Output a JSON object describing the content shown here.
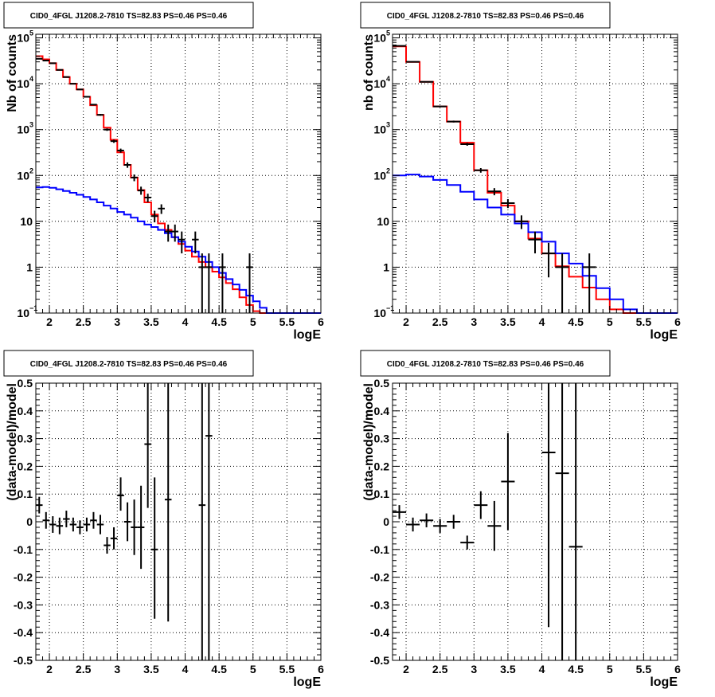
{
  "chart_data": [
    {
      "id": "top-left",
      "type": "histogram",
      "title": "CID0_4FGL J1208.2-7810 TS=82.83 PS=0.46 PS=0.46",
      "xlabel": "logE",
      "ylabel": "Nb of counts",
      "xlim": [
        1.8,
        6.0
      ],
      "ylim": [
        0.1,
        120000
      ],
      "log_y": true,
      "grid": true,
      "x_ticks": [
        "2",
        "2.5",
        "3",
        "3.5",
        "4",
        "4.5",
        "5",
        "5.5",
        "6"
      ],
      "y_ticks": [
        {
          "v": 0.1,
          "base": "10",
          "exp": "−1"
        },
        {
          "v": 1,
          "base": "1",
          "exp": ""
        },
        {
          "v": 10,
          "base": "10",
          "exp": ""
        },
        {
          "v": 100,
          "base": "10",
          "exp": "2"
        },
        {
          "v": 1000,
          "base": "10",
          "exp": "3"
        },
        {
          "v": 10000,
          "base": "10",
          "exp": "4"
        },
        {
          "v": 100000,
          "base": "10",
          "exp": "5"
        }
      ],
      "bin_edges": [
        1.8,
        1.9,
        2.0,
        2.1,
        2.2,
        2.3,
        2.4,
        2.5,
        2.6,
        2.7,
        2.8,
        2.9,
        3.0,
        3.1,
        3.2,
        3.3,
        3.4,
        3.5,
        3.6,
        3.7,
        3.8,
        3.9,
        4.0,
        4.1,
        4.2,
        4.3,
        4.4,
        4.5,
        4.6,
        4.7,
        4.8,
        4.9,
        5.0,
        5.1,
        5.2,
        5.3,
        5.4,
        5.5,
        5.6,
        5.7,
        5.8,
        5.9,
        6.0
      ],
      "series": [
        {
          "color": "#ff0000",
          "kind": "step",
          "values": [
            40000,
            34000,
            28000,
            20000,
            14000,
            10000,
            7500,
            5200,
            3400,
            2100,
            1100,
            600,
            320,
            170,
            90,
            48,
            26,
            14,
            9,
            6.5,
            4.5,
            3.2,
            2.3,
            1.7,
            1.3,
            1.0,
            0.8,
            0.6,
            0.45,
            0.33,
            0.22,
            0.15,
            0.11,
            0.1,
            0.1,
            0.1,
            0.1,
            0.1,
            0.1,
            0.1,
            0.1,
            0.1
          ]
        },
        {
          "color": "#0000ff",
          "kind": "step",
          "values": [
            55,
            56,
            54,
            50,
            46,
            42,
            38,
            34,
            30,
            26,
            22,
            19,
            16,
            14,
            12,
            10,
            8.5,
            7.5,
            6.5,
            5.5,
            4.5,
            3.6,
            2.8,
            2.2,
            1.7,
            1.3,
            1.0,
            0.75,
            0.55,
            0.42,
            0.32,
            0.24,
            0.18,
            0.13,
            0.1,
            0.1,
            0.1,
            0.1,
            0.1,
            0.1,
            0.1,
            0.1
          ]
        }
      ],
      "points": [
        {
          "x": 1.85,
          "y": 35000,
          "xerr": 0.05,
          "lo": 34500,
          "hi": 35500
        },
        {
          "x": 1.95,
          "y": 32000,
          "xerr": 0.05,
          "lo": 31500,
          "hi": 32500
        },
        {
          "x": 2.05,
          "y": 28000,
          "xerr": 0.05,
          "lo": 27500,
          "hi": 28500
        },
        {
          "x": 2.15,
          "y": 20000,
          "xerr": 0.05,
          "lo": 19600,
          "hi": 20400
        },
        {
          "x": 2.25,
          "y": 14000,
          "xerr": 0.05,
          "lo": 13700,
          "hi": 14300
        },
        {
          "x": 2.35,
          "y": 10000,
          "xerr": 0.05,
          "lo": 9800,
          "hi": 10200
        },
        {
          "x": 2.45,
          "y": 7500,
          "xerr": 0.05,
          "lo": 7300,
          "hi": 7700
        },
        {
          "x": 2.55,
          "y": 5200,
          "xerr": 0.05,
          "lo": 5050,
          "hi": 5350
        },
        {
          "x": 2.65,
          "y": 3500,
          "xerr": 0.05,
          "lo": 3380,
          "hi": 3620
        },
        {
          "x": 2.75,
          "y": 2100,
          "xerr": 0.05,
          "lo": 2010,
          "hi": 2190
        },
        {
          "x": 2.85,
          "y": 1000,
          "xerr": 0.05,
          "lo": 940,
          "hi": 1060
        },
        {
          "x": 2.95,
          "y": 560,
          "xerr": 0.05,
          "lo": 515,
          "hi": 605
        },
        {
          "x": 3.05,
          "y": 350,
          "xerr": 0.05,
          "lo": 315,
          "hi": 385
        },
        {
          "x": 3.15,
          "y": 170,
          "xerr": 0.05,
          "lo": 147,
          "hi": 193
        },
        {
          "x": 3.25,
          "y": 90,
          "xerr": 0.05,
          "lo": 75,
          "hi": 105
        },
        {
          "x": 3.35,
          "y": 47,
          "xerr": 0.05,
          "lo": 38,
          "hi": 57
        },
        {
          "x": 3.45,
          "y": 33,
          "xerr": 0.05,
          "lo": 26,
          "hi": 40
        },
        {
          "x": 3.55,
          "y": 13,
          "xerr": 0.05,
          "lo": 9.5,
          "hi": 17
        },
        {
          "x": 3.65,
          "y": 19,
          "xerr": 0.05,
          "lo": 14.5,
          "hi": 23.5
        },
        {
          "x": 3.75,
          "y": 6,
          "xerr": 0.05,
          "lo": 3.6,
          "hi": 8.5
        },
        {
          "x": 3.85,
          "y": 6,
          "xerr": 0.05,
          "lo": 3.6,
          "hi": 8.5
        },
        {
          "x": 3.95,
          "y": 4,
          "xerr": 0.05,
          "lo": 2.0,
          "hi": 6.0
        },
        {
          "x": 4.15,
          "y": 4,
          "xerr": 0.05,
          "lo": 2.0,
          "hi": 6.0
        },
        {
          "x": 4.25,
          "y": 1,
          "xerr": 0.05,
          "lo": 0.1,
          "hi": 2.0
        },
        {
          "x": 4.35,
          "y": 1,
          "xerr": 0.05,
          "lo": 0.1,
          "hi": 2.0
        },
        {
          "x": 4.55,
          "y": 1,
          "xerr": 0.05,
          "lo": 0.1,
          "hi": 2.0
        },
        {
          "x": 4.95,
          "y": 1,
          "xerr": 0.05,
          "lo": 0.1,
          "hi": 2.0
        }
      ]
    },
    {
      "id": "top-right",
      "type": "histogram",
      "title": "CID0_4FGL J1208.2-7810 TS=82.83 PS=0.46 PS=0.46",
      "xlabel": "logE",
      "ylabel": "nb of counts",
      "xlim": [
        1.8,
        6.0
      ],
      "ylim": [
        0.1,
        120000
      ],
      "log_y": true,
      "grid": true,
      "x_ticks": [
        "2",
        "2.5",
        "3",
        "3.5",
        "4",
        "4.5",
        "5",
        "5.5",
        "6"
      ],
      "y_ticks": [
        {
          "v": 0.1,
          "base": "10",
          "exp": "−1"
        },
        {
          "v": 1,
          "base": "1",
          "exp": ""
        },
        {
          "v": 10,
          "base": "10",
          "exp": ""
        },
        {
          "v": 100,
          "base": "10",
          "exp": "2"
        },
        {
          "v": 1000,
          "base": "10",
          "exp": "3"
        },
        {
          "v": 10000,
          "base": "10",
          "exp": "4"
        },
        {
          "v": 100000,
          "base": "10",
          "exp": "5"
        }
      ],
      "bin_edges": [
        1.8,
        2.0,
        2.2,
        2.4,
        2.6,
        2.8,
        3.0,
        3.2,
        3.4,
        3.6,
        3.8,
        4.0,
        4.2,
        4.4,
        4.6,
        4.8,
        5.0,
        5.2,
        5.4,
        5.6,
        5.8,
        6.0
      ],
      "series": [
        {
          "color": "#ff0000",
          "kind": "step",
          "values": [
            65000,
            30000,
            11000,
            3200,
            1500,
            520,
            130,
            42,
            22,
            10,
            4.2,
            2.0,
            1.05,
            0.62,
            0.36,
            0.2,
            0.12,
            0.1,
            0.1,
            0.1,
            0.1
          ]
        },
        {
          "color": "#0000ff",
          "kind": "step",
          "values": [
            100,
            105,
            95,
            80,
            62,
            44,
            30,
            20,
            14,
            9,
            5.8,
            3.6,
            2.0,
            1.2,
            0.65,
            0.35,
            0.2,
            0.12,
            0.1,
            0.1,
            0.1
          ]
        }
      ],
      "points": [
        {
          "x": 1.9,
          "y": 67000,
          "xerr": 0.1,
          "lo": 66500,
          "hi": 67500
        },
        {
          "x": 2.1,
          "y": 30000,
          "xerr": 0.1,
          "lo": 29700,
          "hi": 30300
        },
        {
          "x": 2.3,
          "y": 11000,
          "xerr": 0.1,
          "lo": 10800,
          "hi": 11200
        },
        {
          "x": 2.5,
          "y": 3200,
          "xerr": 0.1,
          "lo": 3100,
          "hi": 3300
        },
        {
          "x": 2.7,
          "y": 1500,
          "xerr": 0.1,
          "lo": 1430,
          "hi": 1570
        },
        {
          "x": 2.9,
          "y": 480,
          "xerr": 0.1,
          "lo": 445,
          "hi": 515
        },
        {
          "x": 3.1,
          "y": 130,
          "xerr": 0.1,
          "lo": 115,
          "hi": 145
        },
        {
          "x": 3.3,
          "y": 45,
          "xerr": 0.1,
          "lo": 37,
          "hi": 53
        },
        {
          "x": 3.5,
          "y": 25,
          "xerr": 0.1,
          "lo": 19.5,
          "hi": 30.5
        },
        {
          "x": 3.7,
          "y": 10,
          "xerr": 0.1,
          "lo": 6.8,
          "hi": 13.5
        },
        {
          "x": 3.9,
          "y": 4,
          "xerr": 0.1,
          "lo": 2.0,
          "hi": 6.0
        },
        {
          "x": 4.1,
          "y": 2,
          "xerr": 0.1,
          "lo": 0.6,
          "hi": 3.4
        },
        {
          "x": 4.3,
          "y": 1,
          "xerr": 0.1,
          "lo": 0.1,
          "hi": 2.0
        },
        {
          "x": 4.7,
          "y": 1,
          "xerr": 0.1,
          "lo": 0.1,
          "hi": 2.0
        }
      ]
    },
    {
      "id": "bottom-left",
      "type": "scatter",
      "title": "CID0_4FGL J1208.2-7810 TS=82.83 PS=0.46 PS=0.46",
      "xlabel": "logE",
      "ylabel": "(data-model)/model",
      "xlim": [
        1.8,
        6.0
      ],
      "ylim": [
        -0.5,
        0.5
      ],
      "log_y": false,
      "grid": true,
      "x_ticks": [
        "2",
        "2.5",
        "3",
        "3.5",
        "4",
        "4.5",
        "5",
        "5.5",
        "6"
      ],
      "y_ticks_lin": [
        "-0.5",
        "-0.4",
        "-0.3",
        "-0.2",
        "-0.1",
        "0",
        "0.1",
        "0.2",
        "0.3",
        "0.4",
        "0.5"
      ],
      "points": [
        {
          "x": 1.85,
          "y": 0.06,
          "xerr": 0.05,
          "lo": 0.03,
          "hi": 0.09
        },
        {
          "x": 1.95,
          "y": 0.005,
          "xerr": 0.05,
          "lo": -0.025,
          "hi": 0.035
        },
        {
          "x": 2.05,
          "y": -0.01,
          "xerr": 0.05,
          "lo": -0.04,
          "hi": 0.02
        },
        {
          "x": 2.15,
          "y": -0.015,
          "xerr": 0.05,
          "lo": -0.045,
          "hi": 0.015
        },
        {
          "x": 2.25,
          "y": 0.01,
          "xerr": 0.05,
          "lo": -0.02,
          "hi": 0.04
        },
        {
          "x": 2.35,
          "y": -0.01,
          "xerr": 0.05,
          "lo": -0.035,
          "hi": 0.015
        },
        {
          "x": 2.45,
          "y": -0.02,
          "xerr": 0.05,
          "lo": -0.045,
          "hi": 0.005
        },
        {
          "x": 2.55,
          "y": -0.01,
          "xerr": 0.05,
          "lo": -0.035,
          "hi": 0.015
        },
        {
          "x": 2.65,
          "y": 0.005,
          "xerr": 0.05,
          "lo": -0.025,
          "hi": 0.035
        },
        {
          "x": 2.75,
          "y": -0.01,
          "xerr": 0.05,
          "lo": -0.045,
          "hi": 0.025
        },
        {
          "x": 2.85,
          "y": -0.085,
          "xerr": 0.05,
          "lo": -0.115,
          "hi": -0.055
        },
        {
          "x": 2.95,
          "y": -0.06,
          "xerr": 0.05,
          "lo": -0.1,
          "hi": -0.02
        },
        {
          "x": 3.05,
          "y": 0.095,
          "xerr": 0.05,
          "lo": 0.04,
          "hi": 0.16
        },
        {
          "x": 3.15,
          "y": 0.0,
          "xerr": 0.05,
          "lo": -0.07,
          "hi": 0.07
        },
        {
          "x": 3.25,
          "y": -0.02,
          "xerr": 0.05,
          "lo": -0.12,
          "hi": 0.08
        },
        {
          "x": 3.35,
          "y": -0.02,
          "xerr": 0.05,
          "lo": -0.17,
          "hi": 0.13
        },
        {
          "x": 3.45,
          "y": 0.28,
          "xerr": 0.05,
          "lo": 0.05,
          "hi": 0.5
        },
        {
          "x": 3.55,
          "y": -0.1,
          "xerr": 0.05,
          "lo": -0.35,
          "hi": 0.16
        },
        {
          "x": 3.75,
          "y": 0.08,
          "xerr": 0.05,
          "lo": -0.36,
          "hi": 0.5
        },
        {
          "x": 4.25,
          "y": 0.06,
          "xerr": 0.05,
          "lo": -0.5,
          "hi": 0.5
        },
        {
          "x": 4.35,
          "y": 0.31,
          "xerr": 0.05,
          "lo": -0.5,
          "hi": 0.5
        }
      ]
    },
    {
      "id": "bottom-right",
      "type": "scatter",
      "title": "CID0_4FGL J1208.2-7810 TS=82.83 PS=0.46 PS=0.46",
      "xlabel": "logE",
      "ylabel": "(data-model)/model",
      "xlim": [
        1.8,
        6.0
      ],
      "ylim": [
        -0.5,
        0.5
      ],
      "log_y": false,
      "grid": true,
      "x_ticks": [
        "2",
        "2.5",
        "3",
        "3.5",
        "4",
        "4.5",
        "5",
        "5.5",
        "6"
      ],
      "y_ticks_lin": [
        "-0.5",
        "-0.4",
        "-0.3",
        "-0.2",
        "-0.1",
        "0",
        "0.1",
        "0.2",
        "0.3",
        "0.4",
        "0.5"
      ],
      "points": [
        {
          "x": 1.9,
          "y": 0.035,
          "xerr": 0.1,
          "lo": 0.01,
          "hi": 0.06
        },
        {
          "x": 2.1,
          "y": -0.01,
          "xerr": 0.1,
          "lo": -0.035,
          "hi": 0.015
        },
        {
          "x": 2.3,
          "y": 0.005,
          "xerr": 0.1,
          "lo": -0.02,
          "hi": 0.03
        },
        {
          "x": 2.5,
          "y": -0.015,
          "xerr": 0.1,
          "lo": -0.04,
          "hi": 0.01
        },
        {
          "x": 2.7,
          "y": 0.0,
          "xerr": 0.1,
          "lo": -0.025,
          "hi": 0.025
        },
        {
          "x": 2.9,
          "y": -0.075,
          "xerr": 0.1,
          "lo": -0.1,
          "hi": -0.05
        },
        {
          "x": 3.1,
          "y": 0.06,
          "xerr": 0.1,
          "lo": 0.01,
          "hi": 0.11
        },
        {
          "x": 3.3,
          "y": -0.015,
          "xerr": 0.1,
          "lo": -0.105,
          "hi": 0.075
        },
        {
          "x": 3.5,
          "y": 0.145,
          "xerr": 0.1,
          "lo": -0.03,
          "hi": 0.32
        },
        {
          "x": 4.1,
          "y": 0.25,
          "xerr": 0.1,
          "lo": -0.38,
          "hi": 0.5
        },
        {
          "x": 4.3,
          "y": 0.175,
          "xerr": 0.1,
          "lo": -0.5,
          "hi": 0.5
        },
        {
          "x": 4.5,
          "y": -0.09,
          "xerr": 0.1,
          "lo": -0.5,
          "hi": 0.5
        }
      ]
    }
  ]
}
